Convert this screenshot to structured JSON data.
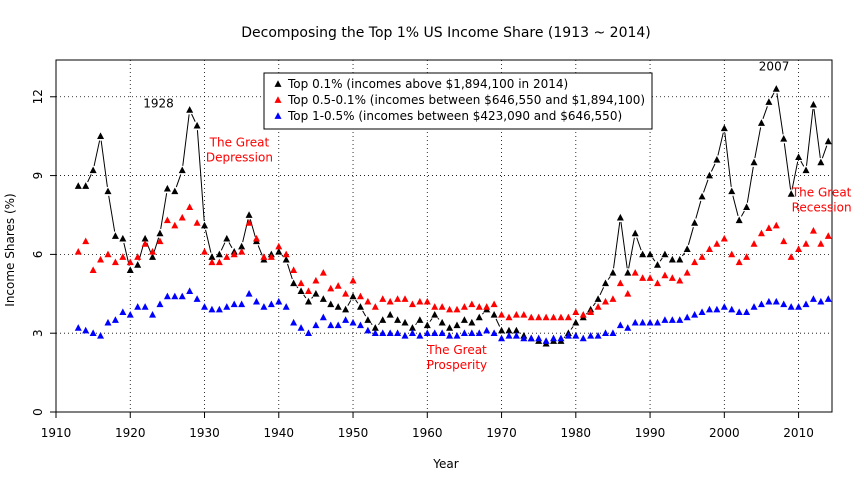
{
  "chart_data": {
    "type": "scatter",
    "title": "Decomposing the Top 1% US Income Share (1913 ~ 2014)",
    "xlabel": "Year",
    "ylabel": "Income Shares (%)",
    "xlim": [
      1910,
      2015
    ],
    "ylim": [
      0,
      13
    ],
    "xticks": [
      "1910",
      "1920",
      "1930",
      "1940",
      "1950",
      "1960",
      "1970",
      "1980",
      "1990",
      "2000",
      "2010"
    ],
    "yticks": [
      "0",
      "3",
      "6",
      "9",
      "12"
    ],
    "grid": true,
    "legend_position": "top-center",
    "x": [
      1913,
      1914,
      1915,
      1916,
      1917,
      1918,
      1919,
      1920,
      1921,
      1922,
      1923,
      1924,
      1925,
      1926,
      1927,
      1928,
      1929,
      1930,
      1931,
      1932,
      1933,
      1934,
      1935,
      1936,
      1937,
      1938,
      1939,
      1940,
      1941,
      1942,
      1943,
      1944,
      1945,
      1946,
      1947,
      1948,
      1949,
      1950,
      1951,
      1952,
      1953,
      1954,
      1955,
      1956,
      1957,
      1958,
      1959,
      1960,
      1961,
      1962,
      1963,
      1964,
      1965,
      1966,
      1967,
      1968,
      1969,
      1970,
      1971,
      1972,
      1973,
      1974,
      1975,
      1976,
      1977,
      1978,
      1979,
      1980,
      1981,
      1982,
      1983,
      1984,
      1985,
      1986,
      1987,
      1988,
      1989,
      1990,
      1991,
      1992,
      1993,
      1994,
      1995,
      1996,
      1997,
      1998,
      1999,
      2000,
      2001,
      2002,
      2003,
      2004,
      2005,
      2006,
      2007,
      2008,
      2009,
      2010,
      2011,
      2012,
      2013,
      2014
    ],
    "series": [
      {
        "name": "Top 0.1% (incomes above $1,894,100 in 2014)",
        "color": "#000000",
        "connected": true,
        "values": [
          8.6,
          8.6,
          9.2,
          10.5,
          8.4,
          6.7,
          6.6,
          5.4,
          5.6,
          6.6,
          5.9,
          6.8,
          8.5,
          8.4,
          9.2,
          11.5,
          10.9,
          7.1,
          5.9,
          6.0,
          6.6,
          6.1,
          6.3,
          7.5,
          6.5,
          5.8,
          6.0,
          6.1,
          5.8,
          4.9,
          4.6,
          4.2,
          4.5,
          4.3,
          4.1,
          4.0,
          3.9,
          4.4,
          4.0,
          3.5,
          3.2,
          3.5,
          3.7,
          3.5,
          3.4,
          3.2,
          3.5,
          3.3,
          3.7,
          3.4,
          3.2,
          3.3,
          3.5,
          3.4,
          3.6,
          3.9,
          3.7,
          3.1,
          3.1,
          3.1,
          2.9,
          2.8,
          2.7,
          2.6,
          2.7,
          2.7,
          3.0,
          3.4,
          3.6,
          3.9,
          4.3,
          4.9,
          5.3,
          7.4,
          5.3,
          6.8,
          6.0,
          6.0,
          5.6,
          6.0,
          5.8,
          5.8,
          6.2,
          7.2,
          8.2,
          9.0,
          9.6,
          10.8,
          8.4,
          7.3,
          7.8,
          9.5,
          11.0,
          11.8,
          12.3,
          10.4,
          8.3,
          9.7,
          9.2,
          11.7,
          9.5,
          10.3
        ]
      },
      {
        "name": "Top 0.5-0.1% (incomes between $646,550 and $1,894,100)",
        "color": "#ff0000",
        "connected": false,
        "values": [
          6.1,
          6.5,
          5.4,
          5.8,
          6.0,
          5.7,
          5.9,
          5.7,
          5.9,
          6.4,
          6.1,
          6.5,
          7.3,
          7.1,
          7.4,
          7.8,
          7.2,
          6.1,
          5.7,
          5.7,
          5.9,
          6.0,
          6.1,
          7.2,
          6.6,
          5.9,
          5.9,
          6.3,
          6.0,
          5.4,
          4.9,
          4.6,
          5.0,
          5.3,
          4.7,
          4.8,
          4.5,
          5.0,
          4.4,
          4.2,
          4.0,
          4.3,
          4.2,
          4.3,
          4.3,
          4.1,
          4.2,
          4.2,
          4.0,
          4.0,
          3.9,
          3.9,
          4.0,
          4.1,
          4.0,
          4.0,
          4.1,
          3.7,
          3.6,
          3.7,
          3.7,
          3.6,
          3.6,
          3.6,
          3.6,
          3.6,
          3.6,
          3.8,
          3.7,
          3.8,
          4.0,
          4.2,
          4.3,
          4.9,
          4.5,
          5.3,
          5.1,
          5.1,
          4.9,
          5.2,
          5.1,
          5.0,
          5.3,
          5.7,
          5.9,
          6.2,
          6.4,
          6.6,
          6.0,
          5.7,
          5.9,
          6.4,
          6.8,
          7.0,
          7.1,
          6.5,
          5.9,
          6.2,
          6.4,
          6.9,
          6.4,
          6.7
        ]
      },
      {
        "name": "Top 1-0.5% (incomes between $423,090 and $646,550)",
        "color": "#0000ff",
        "connected": false,
        "values": [
          3.2,
          3.1,
          3.0,
          2.9,
          3.4,
          3.5,
          3.8,
          3.7,
          4.0,
          4.0,
          3.7,
          4.1,
          4.4,
          4.4,
          4.4,
          4.6,
          4.3,
          4.0,
          3.9,
          3.9,
          4.0,
          4.1,
          4.1,
          4.5,
          4.2,
          4.0,
          4.1,
          4.2,
          4.0,
          3.4,
          3.2,
          3.0,
          3.3,
          3.6,
          3.3,
          3.3,
          3.5,
          3.4,
          3.3,
          3.1,
          3.0,
          3.0,
          3.0,
          3.0,
          2.9,
          3.0,
          2.9,
          3.0,
          3.0,
          3.0,
          2.9,
          2.9,
          3.0,
          3.0,
          3.0,
          3.1,
          3.0,
          2.8,
          2.9,
          2.9,
          2.8,
          2.8,
          2.8,
          2.7,
          2.8,
          2.8,
          2.9,
          2.9,
          2.8,
          2.9,
          2.9,
          3.0,
          3.0,
          3.3,
          3.2,
          3.4,
          3.4,
          3.4,
          3.4,
          3.5,
          3.5,
          3.5,
          3.6,
          3.7,
          3.8,
          3.9,
          3.9,
          4.0,
          3.9,
          3.8,
          3.8,
          4.0,
          4.1,
          4.2,
          4.2,
          4.1,
          4.0,
          4.0,
          4.1,
          4.3,
          4.2,
          4.3
        ]
      }
    ],
    "annotations": [
      {
        "text": "1928",
        "color": "#000000"
      },
      {
        "text": "The Great\nDepression",
        "color": "#ff0000"
      },
      {
        "text": "The Great\nProsperity",
        "color": "#ff0000"
      },
      {
        "text": "2007",
        "color": "#000000"
      },
      {
        "text": "The Great\nRecession",
        "color": "#ff0000"
      }
    ]
  }
}
